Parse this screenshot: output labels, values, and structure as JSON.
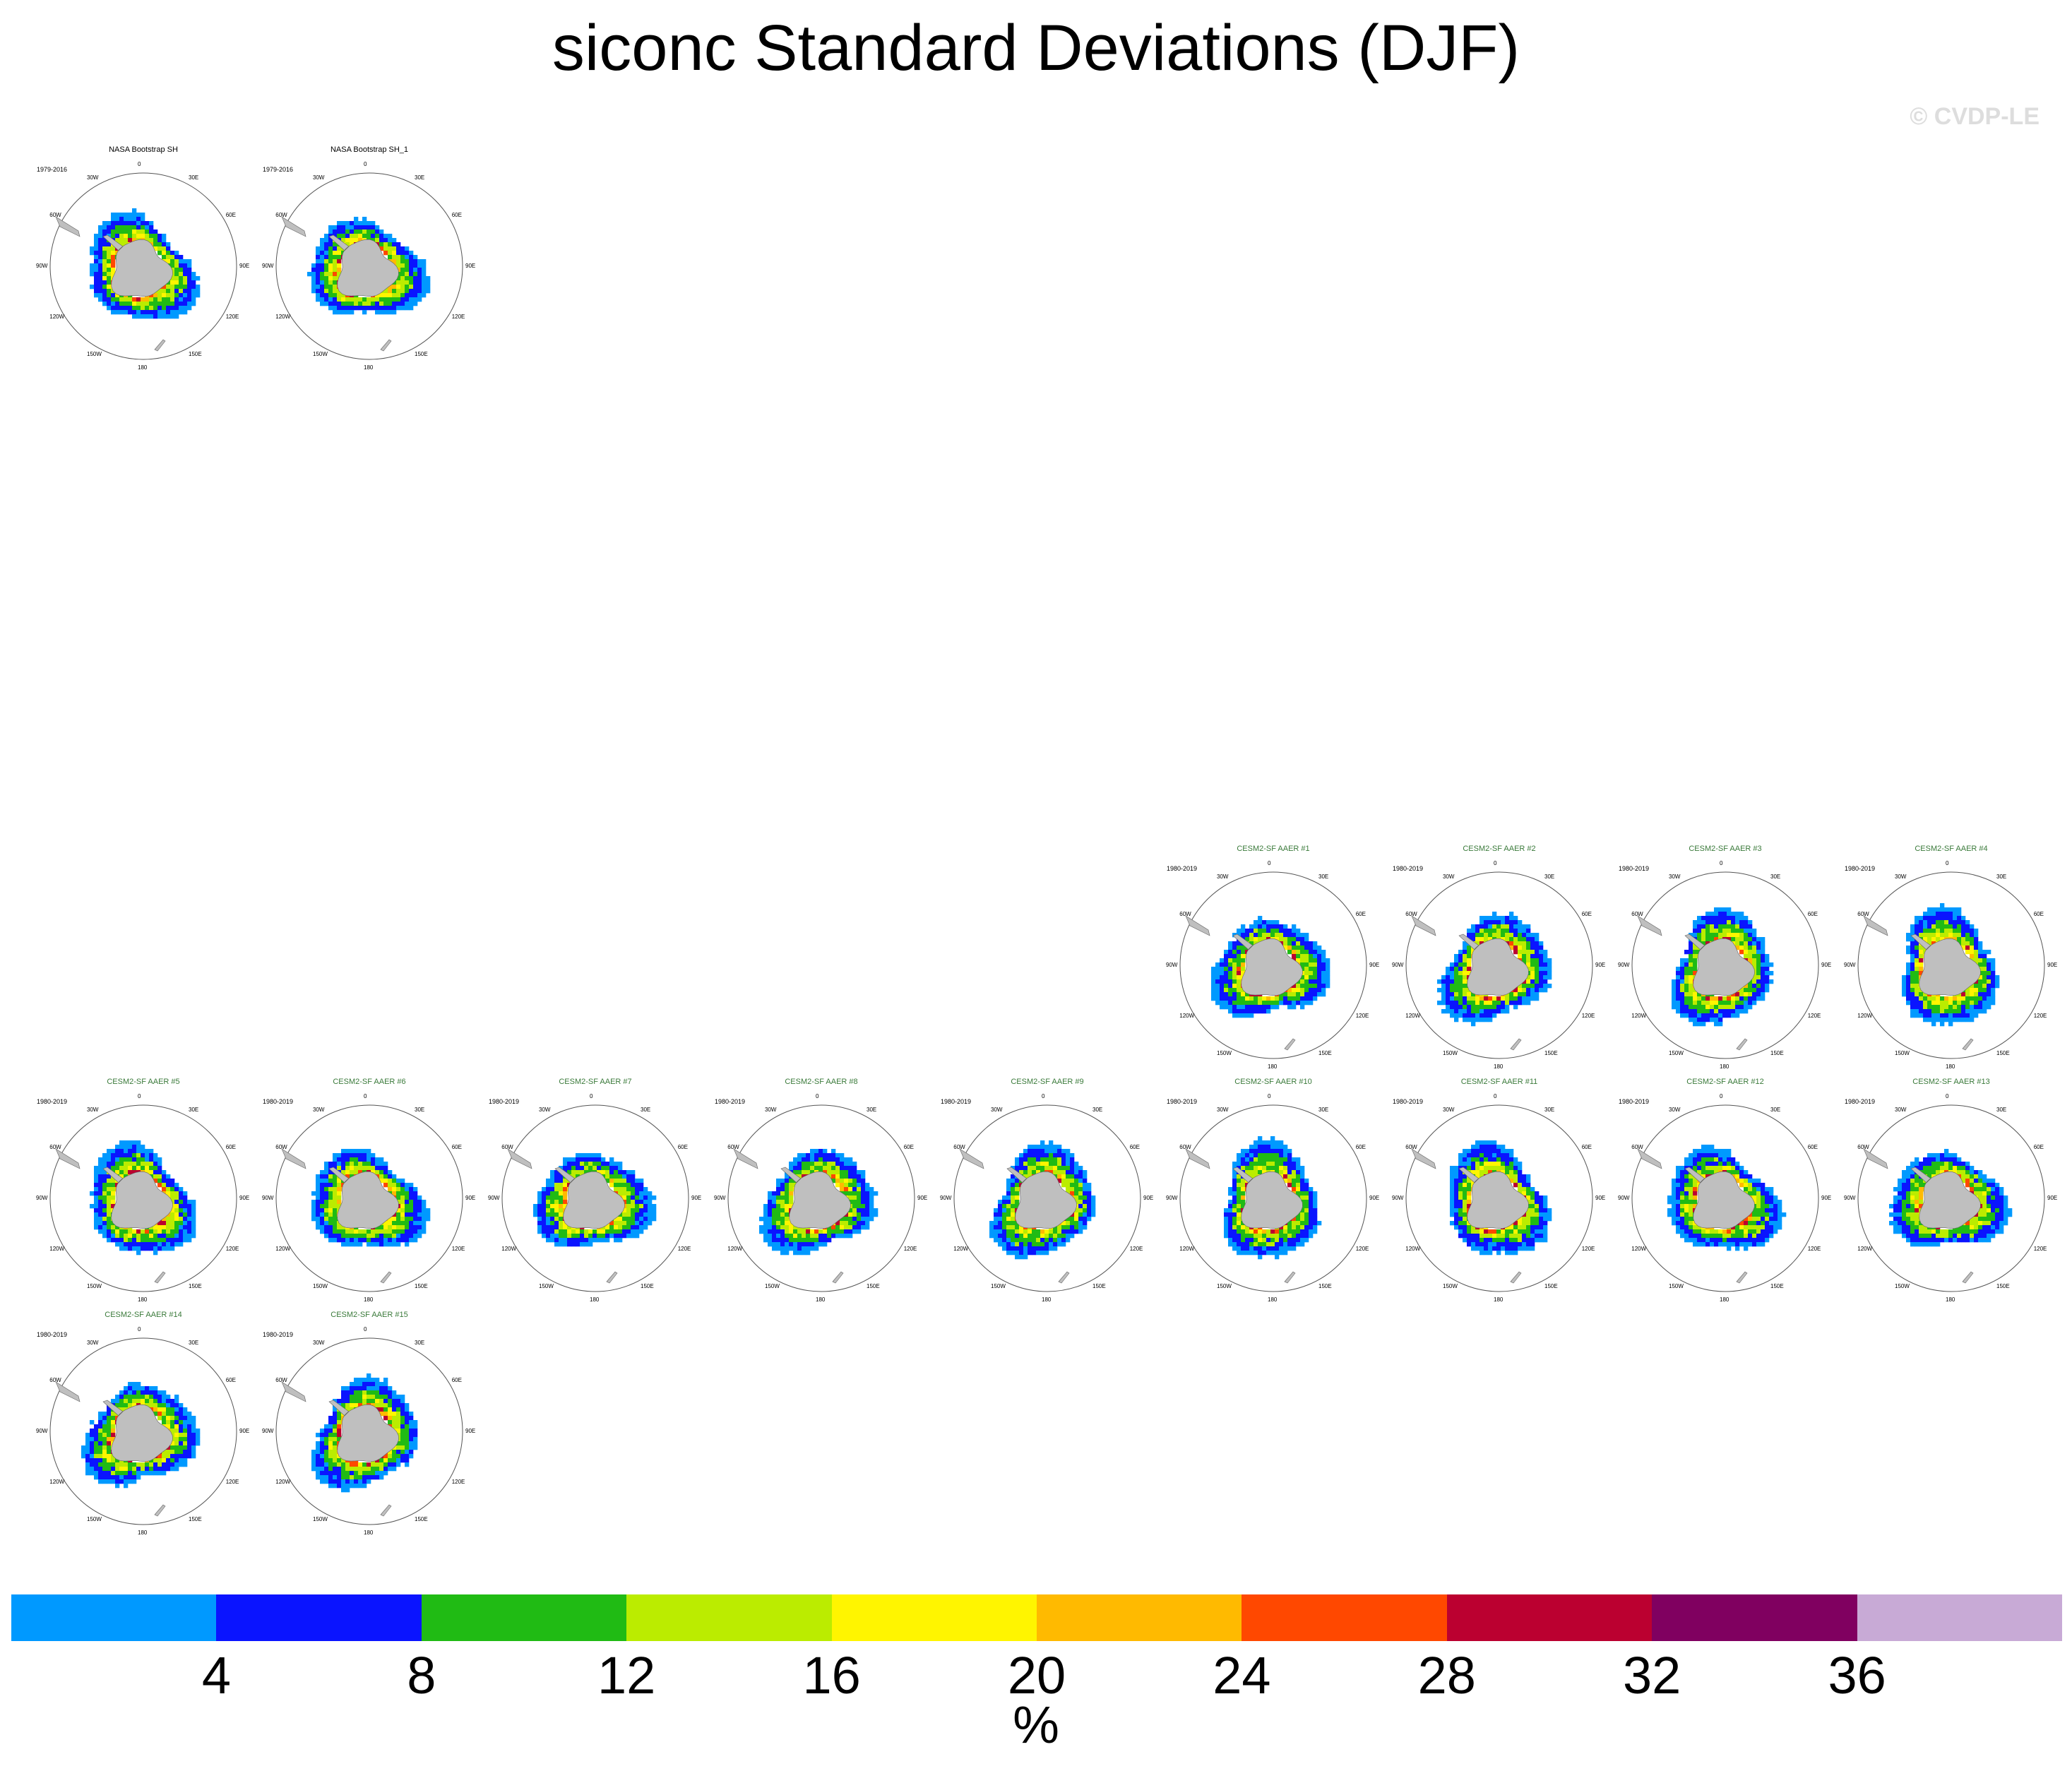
{
  "title": "siconc Standard Deviations (DJF)",
  "watermark": "© CVDP-LE",
  "units": "%",
  "lon_labels": [
    "0",
    "30E",
    "60E",
    "90E",
    "120E",
    "150E",
    "180",
    "150W",
    "120W",
    "90W",
    "60W",
    "30W"
  ],
  "colors": {
    "obs_title": "#000000",
    "model_title": "#3a7a3a",
    "land": "#bfbfbf"
  },
  "chart_data": {
    "type": "heatmap",
    "projection": "south polar stereographic",
    "colorbar": {
      "levels": [
        4,
        8,
        12,
        16,
        20,
        24,
        28,
        32,
        36
      ],
      "colors": [
        "#0099ff",
        "#0a14ff",
        "#20bb14",
        "#bbec00",
        "#fff500",
        "#ffba00",
        "#ff4800",
        "#bb0030",
        "#800060",
        "#c8aad6"
      ]
    },
    "panels": [
      {
        "title": "NASA Bootstrap SH",
        "years": "1979-2016",
        "kind": "obs"
      },
      {
        "title": "NASA Bootstrap SH_1",
        "years": "1979-2016",
        "kind": "obs"
      },
      {
        "title": "CESM2-SF AAER #1",
        "years": "1980-2019",
        "kind": "model"
      },
      {
        "title": "CESM2-SF AAER #2",
        "years": "1980-2019",
        "kind": "model"
      },
      {
        "title": "CESM2-SF AAER #3",
        "years": "1980-2019",
        "kind": "model"
      },
      {
        "title": "CESM2-SF AAER #4",
        "years": "1980-2019",
        "kind": "model"
      },
      {
        "title": "CESM2-SF AAER #5",
        "years": "1980-2019",
        "kind": "model"
      },
      {
        "title": "CESM2-SF AAER #6",
        "years": "1980-2019",
        "kind": "model"
      },
      {
        "title": "CESM2-SF AAER #7",
        "years": "1980-2019",
        "kind": "model"
      },
      {
        "title": "CESM2-SF AAER #8",
        "years": "1980-2019",
        "kind": "model"
      },
      {
        "title": "CESM2-SF AAER #9",
        "years": "1980-2019",
        "kind": "model"
      },
      {
        "title": "CESM2-SF AAER #10",
        "years": "1980-2019",
        "kind": "model"
      },
      {
        "title": "CESM2-SF AAER #11",
        "years": "1980-2019",
        "kind": "model"
      },
      {
        "title": "CESM2-SF AAER #12",
        "years": "1980-2019",
        "kind": "model"
      },
      {
        "title": "CESM2-SF AAER #13",
        "years": "1980-2019",
        "kind": "model"
      },
      {
        "title": "CESM2-SF AAER #14",
        "years": "1980-2019",
        "kind": "model"
      },
      {
        "title": "CESM2-SF AAER #15",
        "years": "1980-2019",
        "kind": "model"
      }
    ]
  }
}
